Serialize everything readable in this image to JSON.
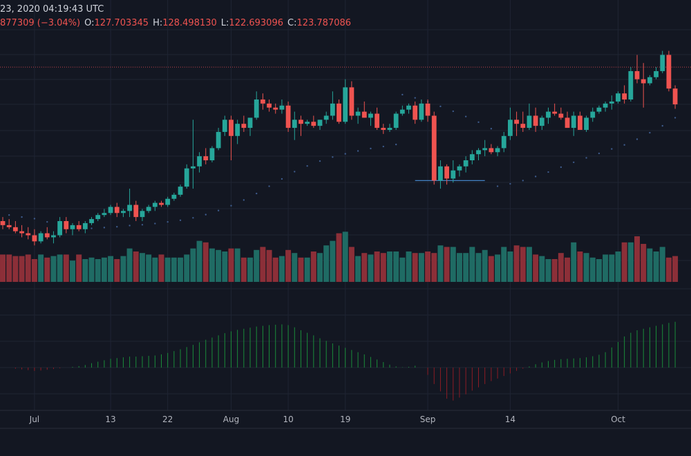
{
  "header": {
    "datetime": "23, 2020 04:19:43 UTC",
    "change": "877309 (−3.04%)",
    "open_label": "O:",
    "open": "127.703345",
    "high_label": "H:",
    "high": "128.498130",
    "low_label": "L:",
    "low": "122.693096",
    "close_label": "C:",
    "close": "123.787086"
  },
  "colors": {
    "background": "#131722",
    "grid": "#1f2433",
    "up": "#26a69a",
    "down": "#ef5350",
    "volume_up": "#1f6b64",
    "volume_down": "#8c2f38",
    "sar": "#3d5a8a",
    "hline": "#4a90d9",
    "price_line": "#c2434b",
    "hist_up": "#1a8c3a",
    "hist_down": "#8c1c25",
    "axis_text": "#b2b5be"
  },
  "chart_data": {
    "type": "candlestick",
    "x_tick_labels": [
      {
        "day": 5,
        "label": "Jul"
      },
      {
        "day": 17,
        "label": "13"
      },
      {
        "day": 26,
        "label": "22"
      },
      {
        "day": 36,
        "label": "Aug"
      },
      {
        "day": 45,
        "label": "10"
      },
      {
        "day": 54,
        "label": "19"
      },
      {
        "day": 67,
        "label": "Sep"
      },
      {
        "day": 80,
        "label": "14"
      },
      {
        "day": 97,
        "label": "Oct"
      }
    ],
    "ylim": [
      80,
      140
    ],
    "grid": true,
    "price_line_level": 133,
    "support_line": {
      "level": 105,
      "from_day": 65,
      "to_day": 76
    },
    "ohlc": [
      [
        95,
        96,
        93,
        94
      ],
      [
        94,
        95.5,
        93,
        93.5
      ],
      [
        93.5,
        95,
        92,
        92.5
      ],
      [
        92.5,
        94,
        91,
        92
      ],
      [
        92,
        93.5,
        90.5,
        91.5
      ],
      [
        91.5,
        93,
        89,
        90
      ],
      [
        90,
        92.5,
        89.5,
        92
      ],
      [
        92,
        93.5,
        90.5,
        91
      ],
      [
        91,
        92.5,
        89.5,
        91.5
      ],
      [
        91.5,
        96,
        91,
        95
      ],
      [
        95,
        96,
        92,
        93
      ],
      [
        93,
        94.5,
        91.5,
        94
      ],
      [
        94,
        95,
        92.5,
        93
      ],
      [
        93,
        95,
        92,
        94.5
      ],
      [
        94.5,
        96,
        94,
        95.5
      ],
      [
        95.5,
        97,
        95,
        96.5
      ],
      [
        96.5,
        98,
        96,
        97
      ],
      [
        97,
        99,
        96.5,
        98.5
      ],
      [
        98.5,
        99.5,
        96,
        97
      ],
      [
        97,
        98,
        96,
        97.5
      ],
      [
        97.5,
        103,
        96,
        99
      ],
      [
        99,
        100,
        95,
        96
      ],
      [
        96,
        98,
        95,
        97.5
      ],
      [
        97.5,
        99,
        97,
        98.5
      ],
      [
        98.5,
        100,
        97.5,
        99.5
      ],
      [
        99.5,
        100,
        98.5,
        99
      ],
      [
        99,
        101,
        98.5,
        100.5
      ],
      [
        100.5,
        102,
        100,
        101.5
      ],
      [
        101.5,
        104,
        101,
        103.5
      ],
      [
        103.5,
        109,
        103,
        108
      ],
      [
        108,
        120,
        103,
        108.5
      ],
      [
        108.5,
        112,
        107,
        111
      ],
      [
        111,
        113,
        109,
        110
      ],
      [
        110,
        113.5,
        109.5,
        113
      ],
      [
        113,
        118,
        112.5,
        117
      ],
      [
        117,
        121,
        116,
        120
      ],
      [
        120,
        121,
        110,
        116
      ],
      [
        116,
        120,
        114,
        119
      ],
      [
        119,
        121,
        117,
        118
      ],
      [
        118,
        120,
        116,
        120.5
      ],
      [
        120.5,
        127,
        120,
        125
      ],
      [
        125,
        126.5,
        122.5,
        124
      ],
      [
        124,
        125,
        122,
        123
      ],
      [
        123,
        124,
        121.5,
        122.5
      ],
      [
        122.5,
        125,
        121.5,
        123.5
      ],
      [
        123.5,
        124.5,
        117,
        118
      ],
      [
        118,
        122,
        115,
        120
      ],
      [
        120,
        121,
        116,
        119
      ],
      [
        119,
        120,
        118.5,
        119.5
      ],
      [
        119.5,
        121,
        118,
        118.5
      ],
      [
        118.5,
        120,
        117.5,
        120
      ],
      [
        120,
        122,
        119,
        121
      ],
      [
        121,
        127,
        120,
        124
      ],
      [
        124,
        125,
        119,
        119.5
      ],
      [
        119.5,
        130,
        119,
        128
      ],
      [
        128,
        129.5,
        120,
        121
      ],
      [
        121,
        123,
        119,
        122
      ],
      [
        122,
        124.5,
        120.5,
        120.5
      ],
      [
        120.5,
        122,
        118.5,
        121.5
      ],
      [
        121.5,
        123,
        117.5,
        118
      ],
      [
        118,
        119,
        116.5,
        117.5
      ],
      [
        117.5,
        119,
        117,
        118
      ],
      [
        118,
        122,
        117.5,
        121.5
      ],
      [
        121.5,
        123.5,
        121,
        122.5
      ],
      [
        122.5,
        124,
        121.5,
        123.5
      ],
      [
        123.5,
        124.5,
        119,
        120
      ],
      [
        120,
        125,
        119.5,
        124
      ],
      [
        124,
        125,
        119.5,
        121
      ],
      [
        121,
        122,
        104,
        105
      ],
      [
        105,
        110,
        103,
        108.5
      ],
      [
        108.5,
        109,
        104,
        105.5
      ],
      [
        105.5,
        110,
        104.5,
        107.5
      ],
      [
        107.5,
        109,
        106,
        108.5
      ],
      [
        108.5,
        111,
        107,
        110
      ],
      [
        110,
        112.5,
        109,
        111.5
      ],
      [
        111.5,
        113,
        110,
        112.5
      ],
      [
        112.5,
        115,
        111,
        113
      ],
      [
        113,
        114,
        111.5,
        112
      ],
      [
        112,
        113.5,
        111,
        113
      ],
      [
        113,
        117,
        112,
        116
      ],
      [
        116,
        123,
        115,
        120
      ],
      [
        120,
        122,
        116,
        119
      ],
      [
        119,
        122,
        117,
        118
      ],
      [
        118,
        124,
        117.5,
        121
      ],
      [
        121,
        123,
        117,
        118.5
      ],
      [
        118.5,
        121,
        117.5,
        120.5
      ],
      [
        120.5,
        123,
        119,
        122
      ],
      [
        122,
        124,
        121,
        121.5
      ],
      [
        121.5,
        123,
        120,
        120.5
      ],
      [
        120.5,
        122,
        118,
        118
      ],
      [
        118,
        122,
        116,
        121
      ],
      [
        121,
        122,
        117.5,
        117.5
      ],
      [
        117.5,
        121,
        117,
        120.5
      ],
      [
        120.5,
        123,
        119.5,
        122
      ],
      [
        122,
        123.5,
        121.5,
        123
      ],
      [
        123,
        124.5,
        122,
        124
      ],
      [
        124,
        126,
        122.5,
        124.5
      ],
      [
        124.5,
        127,
        124,
        126.5
      ],
      [
        126.5,
        128.5,
        124,
        125
      ],
      [
        125,
        133,
        124.5,
        132
      ],
      [
        132,
        136,
        129,
        130
      ],
      [
        130,
        134,
        123,
        129
      ],
      [
        129,
        131,
        128.5,
        130.5
      ],
      [
        130.5,
        133,
        130,
        132
      ],
      [
        132,
        137,
        131.5,
        136
      ],
      [
        136,
        137,
        127,
        127.7
      ],
      [
        127.7,
        128.5,
        122.7,
        123.8
      ]
    ],
    "volume": [
      18,
      18,
      17,
      17,
      18,
      15,
      18,
      16,
      17,
      18,
      18,
      14,
      18,
      15,
      16,
      15,
      16,
      17,
      15,
      17,
      22,
      20,
      19,
      18,
      16,
      18,
      16,
      16,
      16,
      18,
      22,
      27,
      26,
      22,
      21,
      20,
      22,
      22,
      16,
      16,
      21,
      23,
      21,
      16,
      17,
      21,
      19,
      16,
      16,
      20,
      19,
      24,
      27,
      32,
      33,
      23,
      17,
      19,
      18,
      20,
      19,
      20,
      20,
      16,
      20,
      19,
      19,
      20,
      19,
      24,
      23,
      23,
      19,
      19,
      23,
      19,
      21,
      17,
      18,
      23,
      20,
      24,
      23,
      23,
      18,
      17,
      15,
      15,
      19,
      16,
      26,
      20,
      19,
      16,
      15,
      18,
      18,
      20,
      26,
      26,
      30,
      25,
      22,
      20,
      23,
      16,
      17
    ],
    "sar": [
      null,
      96.5,
      null,
      96,
      null,
      95.6,
      null,
      94.8,
      null,
      94.3,
      93.8,
      null,
      93.4,
      null,
      93.2,
      null,
      93.4,
      null,
      93.6,
      null,
      93.9,
      null,
      94.1,
      null,
      94.4,
      null,
      94.8,
      null,
      95.2,
      null,
      95.8,
      null,
      96.6,
      null,
      97.6,
      null,
      98.8,
      null,
      100.2,
      null,
      101.8,
      null,
      103.6,
      null,
      105.4,
      null,
      107.2,
      null,
      108.6,
      null,
      109.8,
      null,
      110.8,
      null,
      111.6,
      null,
      112.3,
      null,
      112.9,
      null,
      113.4,
      null,
      113.9,
      126.2,
      null,
      125.4,
      null,
      124.4,
      null,
      123.3,
      null,
      122.1,
      null,
      120.8,
      null,
      119.4,
      null,
      117.8,
      103.6,
      null,
      104.2,
      null,
      105,
      null,
      106,
      null,
      107.1,
      null,
      108.3,
      null,
      109.5,
      null,
      110.6,
      null,
      111.7,
      null,
      112.8,
      null,
      113.8,
      null,
      115.2,
      null,
      116.8,
      null,
      118.5,
      null,
      120.5
    ],
    "histogram": [
      0,
      0,
      -0.3,
      -0.5,
      -0.7,
      -0.9,
      -0.8,
      -0.6,
      -0.4,
      -0.2,
      0,
      0.2,
      0.4,
      0.7,
      1.2,
      1.6,
      2,
      2.4,
      2.6,
      2.8,
      3,
      3,
      3.1,
      3.2,
      3.3,
      3.6,
      4,
      4.5,
      5,
      5.6,
      6.2,
      6.9,
      7.6,
      8.2,
      8.8,
      9.4,
      9.9,
      10.3,
      10.6,
      10.9,
      11.2,
      11.4,
      11.6,
      11.7,
      11.8,
      11.6,
      11,
      10.2,
      9.5,
      8.8,
      8,
      7.3,
      6.6,
      6,
      5.4,
      4.8,
      4.2,
      3.6,
      2.9,
      2.2,
      1.5,
      0.8,
      0.3,
      0.1,
      0.2,
      0.5,
      0,
      -2,
      -4.5,
      -6.5,
      -8.5,
      -9,
      -8.2,
      -7.3,
      -6.3,
      -5.4,
      -4.5,
      -3.7,
      -3,
      -2.3,
      -1.6,
      -0.9,
      -0.3,
      0.3,
      0.9,
      1.4,
      1.8,
      2.1,
      2.3,
      2.4,
      2.5,
      2.6,
      2.8,
      3.1,
      3.5,
      4.2,
      5.5,
      7,
      8.5,
      9.5,
      10.2,
      10.6,
      11,
      11.4,
      11.8,
      12.2,
      12.5
    ]
  }
}
